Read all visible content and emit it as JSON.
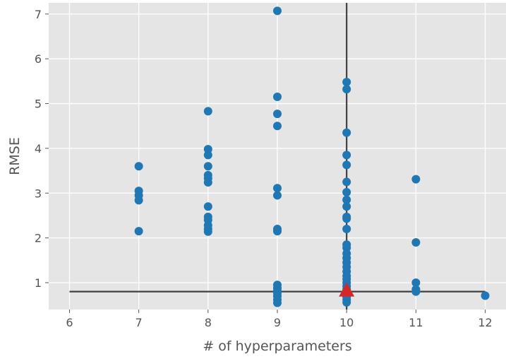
{
  "chart_data": {
    "type": "scatter",
    "title": "",
    "xlabel": "# of hyperparameters",
    "ylabel": "RMSE",
    "xlim": [
      5.7,
      12.3
    ],
    "ylim": [
      0.4,
      7.25
    ],
    "xticks": [
      6,
      7,
      8,
      9,
      10,
      11,
      12
    ],
    "yticks": [
      1,
      2,
      3,
      4,
      5,
      6,
      7
    ],
    "grid": true,
    "background": "#e5e5e5",
    "grid_color": "#ffffff",
    "point_color": "#1f77b4",
    "marker_color": "#d62728",
    "reference_line_color": "#404040",
    "reference_lines": {
      "vertical_x": 10,
      "horizontal_y": 0.8
    },
    "highlight_point": {
      "x": 10,
      "y": 0.8,
      "marker": "triangle"
    },
    "points": [
      {
        "x": 7,
        "y": 3.6
      },
      {
        "x": 7,
        "y": 3.05
      },
      {
        "x": 7,
        "y": 2.95
      },
      {
        "x": 7,
        "y": 2.84
      },
      {
        "x": 7,
        "y": 2.15
      },
      {
        "x": 8,
        "y": 4.83
      },
      {
        "x": 8,
        "y": 3.98
      },
      {
        "x": 8,
        "y": 3.85
      },
      {
        "x": 8,
        "y": 3.6
      },
      {
        "x": 8,
        "y": 3.4
      },
      {
        "x": 8,
        "y": 3.33
      },
      {
        "x": 8,
        "y": 3.24
      },
      {
        "x": 8,
        "y": 2.7
      },
      {
        "x": 8,
        "y": 2.47
      },
      {
        "x": 8,
        "y": 2.4
      },
      {
        "x": 8,
        "y": 2.28
      },
      {
        "x": 8,
        "y": 2.2
      },
      {
        "x": 8,
        "y": 2.14
      },
      {
        "x": 9,
        "y": 7.07
      },
      {
        "x": 9,
        "y": 5.15
      },
      {
        "x": 9,
        "y": 4.77
      },
      {
        "x": 9,
        "y": 4.5
      },
      {
        "x": 9,
        "y": 3.11
      },
      {
        "x": 9,
        "y": 2.95
      },
      {
        "x": 9,
        "y": 2.2
      },
      {
        "x": 9,
        "y": 2.15
      },
      {
        "x": 9,
        "y": 0.95
      },
      {
        "x": 9,
        "y": 0.88
      },
      {
        "x": 9,
        "y": 0.82
      },
      {
        "x": 9,
        "y": 0.76
      },
      {
        "x": 9,
        "y": 0.7
      },
      {
        "x": 9,
        "y": 0.62
      },
      {
        "x": 9,
        "y": 0.55
      },
      {
        "x": 10,
        "y": 5.48
      },
      {
        "x": 10,
        "y": 5.32
      },
      {
        "x": 10,
        "y": 4.35
      },
      {
        "x": 10,
        "y": 3.85
      },
      {
        "x": 10,
        "y": 3.63
      },
      {
        "x": 10,
        "y": 3.25
      },
      {
        "x": 10,
        "y": 3.02
      },
      {
        "x": 10,
        "y": 2.85
      },
      {
        "x": 10,
        "y": 2.7
      },
      {
        "x": 10,
        "y": 2.47
      },
      {
        "x": 10,
        "y": 2.43
      },
      {
        "x": 10,
        "y": 2.2
      },
      {
        "x": 10,
        "y": 1.85
      },
      {
        "x": 10,
        "y": 1.78
      },
      {
        "x": 10,
        "y": 1.65
      },
      {
        "x": 10,
        "y": 1.55
      },
      {
        "x": 10,
        "y": 1.45
      },
      {
        "x": 10,
        "y": 1.35
      },
      {
        "x": 10,
        "y": 1.25
      },
      {
        "x": 10,
        "y": 1.15
      },
      {
        "x": 10,
        "y": 1.08
      },
      {
        "x": 10,
        "y": 1.0
      },
      {
        "x": 10,
        "y": 0.92
      },
      {
        "x": 10,
        "y": 0.85
      },
      {
        "x": 10,
        "y": 0.75
      },
      {
        "x": 10,
        "y": 0.68
      },
      {
        "x": 10,
        "y": 0.62
      },
      {
        "x": 10,
        "y": 0.56
      },
      {
        "x": 11,
        "y": 3.31
      },
      {
        "x": 11,
        "y": 1.9
      },
      {
        "x": 11,
        "y": 1.0
      },
      {
        "x": 11,
        "y": 0.85
      },
      {
        "x": 11,
        "y": 0.8
      },
      {
        "x": 12,
        "y": 0.71
      }
    ]
  }
}
